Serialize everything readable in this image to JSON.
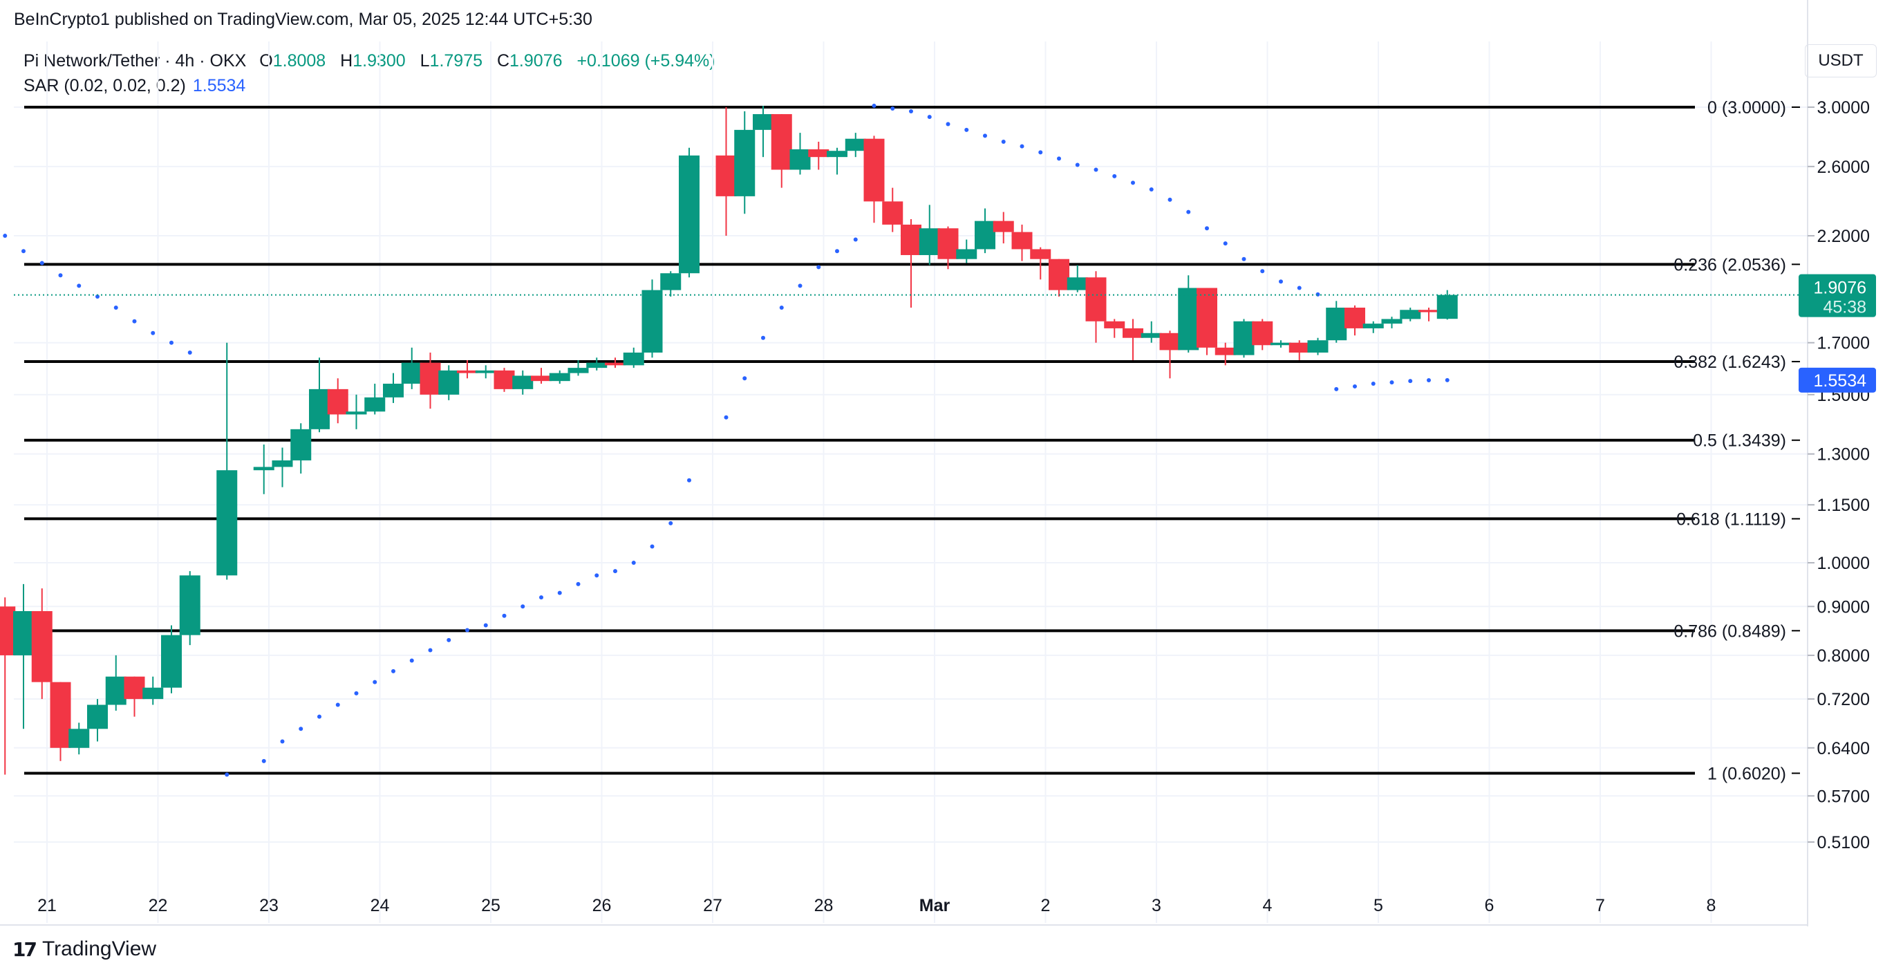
{
  "publisher": "BeInCrypto1 published on TradingView.com, Mar 05, 2025 12:44 UTC+5:30",
  "legend": {
    "symbol": "Pi Network/Tether · 4h · OKX",
    "o_label": "O",
    "o_value": "1.8008",
    "h_label": "H",
    "h_value": "1.9300",
    "l_label": "L",
    "l_value": "1.7975",
    "c_label": "C",
    "c_value": "1.9076",
    "change": "+0.1069 (+5.94%)",
    "sar_label": "SAR (0.02, 0.02, 0.2)",
    "sar_value": "1.5534"
  },
  "currency_button": "USDT",
  "footer_brand": "TradingView",
  "footer_icon": "tradingview-logo-icon",
  "colors": {
    "up": "#089981",
    "down": "#f23645",
    "sar": "#2962ff",
    "grid": "#f0f3fa",
    "fib_line": "#000000",
    "text": "#131722"
  },
  "chart_data": {
    "type": "candlestick",
    "scale": "log",
    "ylim": [
      0.465,
      3.2
    ],
    "y_ticks": [
      "3.0000",
      "2.6000",
      "2.2000",
      "1.7000",
      "1.5000",
      "1.3000",
      "1.1500",
      "1.0000",
      "0.9000",
      "0.8000",
      "0.7200",
      "0.6400",
      "0.5700",
      "0.5100"
    ],
    "x_labels": [
      "21",
      "22",
      "23",
      "24",
      "25",
      "26",
      "27",
      "28",
      "Mar",
      "2",
      "3",
      "4",
      "5",
      "6",
      "7",
      "8"
    ],
    "fib_levels": [
      {
        "label": "0 (3.0000)",
        "value": 3.0
      },
      {
        "label": "0.236 (2.0536)",
        "value": 2.0536
      },
      {
        "label": "0.382 (1.6243)",
        "value": 1.6243
      },
      {
        "label": "0.5 (1.3439)",
        "value": 1.3439
      },
      {
        "label": "0.618 (1.1119)",
        "value": 1.1119
      },
      {
        "label": "0.786 (0.8489)",
        "value": 0.8489
      },
      {
        "label": "1 (0.6020)",
        "value": 0.602
      }
    ],
    "last_price": {
      "value": 1.9076,
      "label": "1.9076",
      "countdown": "45:38"
    },
    "sar_price": {
      "value": 1.5534,
      "label": "1.5534"
    },
    "candles": [
      [
        "2025-02-20 20:00",
        0.9,
        0.92,
        0.6,
        0.8
      ],
      [
        "2025-02-21 00:00",
        0.8,
        0.95,
        0.67,
        0.89
      ],
      [
        "2025-02-21 04:00",
        0.89,
        0.94,
        0.72,
        0.75
      ],
      [
        "2025-02-21 08:00",
        0.75,
        0.75,
        0.62,
        0.64
      ],
      [
        "2025-02-21 12:00",
        0.64,
        0.68,
        0.63,
        0.67
      ],
      [
        "2025-02-21 16:00",
        0.67,
        0.72,
        0.65,
        0.71
      ],
      [
        "2025-02-21 20:00",
        0.71,
        0.8,
        0.7,
        0.76
      ],
      [
        "2025-02-22 00:00",
        0.76,
        0.76,
        0.69,
        0.72
      ],
      [
        "2025-02-22 04:00",
        0.72,
        0.76,
        0.71,
        0.74
      ],
      [
        "2025-02-22 08:00",
        0.74,
        0.86,
        0.73,
        0.84
      ],
      [
        "2025-02-22 12:00",
        0.84,
        0.98,
        0.82,
        0.97
      ],
      [
        "2025-02-22 20:00",
        0.97,
        1.7,
        0.96,
        1.25
      ],
      [
        "2025-02-23 04:00",
        1.25,
        1.33,
        1.18,
        1.26
      ],
      [
        "2025-02-23 08:00",
        1.26,
        1.32,
        1.2,
        1.28
      ],
      [
        "2025-02-23 12:00",
        1.28,
        1.4,
        1.24,
        1.38
      ],
      [
        "2025-02-23 16:00",
        1.38,
        1.64,
        1.37,
        1.52
      ],
      [
        "2025-02-23 20:00",
        1.52,
        1.56,
        1.4,
        1.43
      ],
      [
        "2025-02-24 00:00",
        1.43,
        1.5,
        1.38,
        1.44
      ],
      [
        "2025-02-24 04:00",
        1.44,
        1.54,
        1.43,
        1.49
      ],
      [
        "2025-02-24 08:00",
        1.49,
        1.58,
        1.47,
        1.54
      ],
      [
        "2025-02-24 12:00",
        1.54,
        1.68,
        1.52,
        1.62
      ],
      [
        "2025-02-24 16:00",
        1.62,
        1.66,
        1.45,
        1.5
      ],
      [
        "2025-02-24 20:00",
        1.5,
        1.61,
        1.48,
        1.59
      ],
      [
        "2025-02-25 00:00",
        1.59,
        1.63,
        1.56,
        1.58
      ],
      [
        "2025-02-25 04:00",
        1.58,
        1.61,
        1.56,
        1.59
      ],
      [
        "2025-02-25 08:00",
        1.59,
        1.6,
        1.51,
        1.52
      ],
      [
        "2025-02-25 12:00",
        1.52,
        1.59,
        1.5,
        1.57
      ],
      [
        "2025-02-25 16:00",
        1.57,
        1.6,
        1.54,
        1.55
      ],
      [
        "2025-02-25 20:00",
        1.55,
        1.59,
        1.54,
        1.58
      ],
      [
        "2025-02-26 00:00",
        1.58,
        1.63,
        1.57,
        1.6
      ],
      [
        "2025-02-26 04:00",
        1.6,
        1.64,
        1.59,
        1.62
      ],
      [
        "2025-02-26 08:00",
        1.62,
        1.64,
        1.6,
        1.61
      ],
      [
        "2025-02-26 12:00",
        1.61,
        1.68,
        1.6,
        1.66
      ],
      [
        "2025-02-26 16:00",
        1.66,
        1.98,
        1.64,
        1.93
      ],
      [
        "2025-02-26 20:00",
        1.93,
        2.02,
        1.9,
        2.01
      ],
      [
        "2025-02-27 00:00",
        2.01,
        2.72,
        1.99,
        2.67
      ],
      [
        "2025-02-27 08:00",
        2.67,
        3.0,
        2.2,
        2.42
      ],
      [
        "2025-02-27 12:00",
        2.42,
        2.97,
        2.32,
        2.84
      ],
      [
        "2025-02-27 16:00",
        2.84,
        3.01,
        2.66,
        2.95
      ],
      [
        "2025-02-27 20:00",
        2.95,
        2.95,
        2.47,
        2.58
      ],
      [
        "2025-02-28 00:00",
        2.58,
        2.82,
        2.55,
        2.71
      ],
      [
        "2025-02-28 04:00",
        2.71,
        2.76,
        2.58,
        2.66
      ],
      [
        "2025-02-28 08:00",
        2.66,
        2.72,
        2.55,
        2.7
      ],
      [
        "2025-02-28 12:00",
        2.7,
        2.82,
        2.66,
        2.78
      ],
      [
        "2025-02-28 16:00",
        2.78,
        2.8,
        2.27,
        2.39
      ],
      [
        "2025-02-28 20:00",
        2.39,
        2.47,
        2.22,
        2.26
      ],
      [
        "2025-03-01 00:00",
        2.26,
        2.29,
        1.85,
        2.1
      ],
      [
        "2025-03-01 04:00",
        2.1,
        2.37,
        2.05,
        2.24
      ],
      [
        "2025-03-01 08:00",
        2.24,
        2.25,
        2.03,
        2.08
      ],
      [
        "2025-03-01 12:00",
        2.08,
        2.18,
        2.06,
        2.13
      ],
      [
        "2025-03-01 16:00",
        2.13,
        2.35,
        2.11,
        2.28
      ],
      [
        "2025-03-01 20:00",
        2.28,
        2.33,
        2.16,
        2.22
      ],
      [
        "2025-03-02 00:00",
        2.22,
        2.26,
        2.07,
        2.13
      ],
      [
        "2025-03-02 04:00",
        2.13,
        2.14,
        1.98,
        2.08
      ],
      [
        "2025-03-02 08:00",
        2.08,
        2.08,
        1.9,
        1.93
      ],
      [
        "2025-03-02 12:00",
        1.93,
        2.05,
        1.92,
        1.99
      ],
      [
        "2025-03-02 16:00",
        1.99,
        2.02,
        1.7,
        1.79
      ],
      [
        "2025-03-02 20:00",
        1.79,
        1.8,
        1.72,
        1.76
      ],
      [
        "2025-03-03 00:00",
        1.76,
        1.8,
        1.63,
        1.72
      ],
      [
        "2025-03-03 04:00",
        1.72,
        1.79,
        1.7,
        1.74
      ],
      [
        "2025-03-03 08:00",
        1.74,
        1.75,
        1.56,
        1.67
      ],
      [
        "2025-03-03 12:00",
        1.67,
        2.0,
        1.66,
        1.94
      ],
      [
        "2025-03-03 16:00",
        1.94,
        1.94,
        1.65,
        1.68
      ],
      [
        "2025-03-03 20:00",
        1.68,
        1.7,
        1.61,
        1.65
      ],
      [
        "2025-03-04 00:00",
        1.65,
        1.8,
        1.64,
        1.79
      ],
      [
        "2025-03-04 04:00",
        1.79,
        1.8,
        1.67,
        1.69
      ],
      [
        "2025-03-04 08:00",
        1.69,
        1.71,
        1.68,
        1.7
      ],
      [
        "2025-03-04 12:00",
        1.7,
        1.71,
        1.63,
        1.66
      ],
      [
        "2025-03-04 16:00",
        1.66,
        1.72,
        1.65,
        1.71
      ],
      [
        "2025-03-04 20:00",
        1.71,
        1.88,
        1.7,
        1.85
      ],
      [
        "2025-03-05 00:00",
        1.85,
        1.86,
        1.73,
        1.76
      ],
      [
        "2025-03-05 04:00",
        1.76,
        1.79,
        1.74,
        1.78
      ],
      [
        "2025-03-05 08:00",
        1.78,
        1.81,
        1.76,
        1.8
      ],
      [
        "2025-03-05 12:00",
        1.8,
        1.85,
        1.79,
        1.84
      ],
      [
        "2025-03-05 16:00",
        1.84,
        1.85,
        1.79,
        1.83
      ],
      [
        "2025-03-05 20:00",
        1.8008,
        1.93,
        1.7975,
        1.9076
      ]
    ],
    "sar": [
      [
        "2025-02-20 20:00",
        2.2
      ],
      [
        "2025-02-21 00:00",
        2.12
      ],
      [
        "2025-02-21 04:00",
        2.06
      ],
      [
        "2025-02-21 08:00",
        2.0
      ],
      [
        "2025-02-21 12:00",
        1.95
      ],
      [
        "2025-02-21 16:00",
        1.9
      ],
      [
        "2025-02-21 20:00",
        1.85
      ],
      [
        "2025-02-22 00:00",
        1.79
      ],
      [
        "2025-02-22 04:00",
        1.74
      ],
      [
        "2025-02-22 08:00",
        1.7
      ],
      [
        "2025-02-22 12:00",
        1.66
      ],
      [
        "2025-02-22 20:00",
        0.6
      ],
      [
        "2025-02-23 04:00",
        0.62
      ],
      [
        "2025-02-23 08:00",
        0.65
      ],
      [
        "2025-02-23 12:00",
        0.67
      ],
      [
        "2025-02-23 16:00",
        0.69
      ],
      [
        "2025-02-23 20:00",
        0.71
      ],
      [
        "2025-02-24 00:00",
        0.73
      ],
      [
        "2025-02-24 04:00",
        0.75
      ],
      [
        "2025-02-24 08:00",
        0.77
      ],
      [
        "2025-02-24 12:00",
        0.79
      ],
      [
        "2025-02-24 16:00",
        0.81
      ],
      [
        "2025-02-24 20:00",
        0.83
      ],
      [
        "2025-02-25 00:00",
        0.85
      ],
      [
        "2025-02-25 04:00",
        0.86
      ],
      [
        "2025-02-25 08:00",
        0.88
      ],
      [
        "2025-02-25 12:00",
        0.9
      ],
      [
        "2025-02-25 16:00",
        0.92
      ],
      [
        "2025-02-25 20:00",
        0.93
      ],
      [
        "2025-02-26 00:00",
        0.95
      ],
      [
        "2025-02-26 04:00",
        0.97
      ],
      [
        "2025-02-26 08:00",
        0.98
      ],
      [
        "2025-02-26 12:00",
        1.0
      ],
      [
        "2025-02-26 16:00",
        1.04
      ],
      [
        "2025-02-26 20:00",
        1.1
      ],
      [
        "2025-02-27 00:00",
        1.22
      ],
      [
        "2025-02-27 08:00",
        1.42
      ],
      [
        "2025-02-27 12:00",
        1.56
      ],
      [
        "2025-02-27 16:00",
        1.72
      ],
      [
        "2025-02-27 20:00",
        1.85
      ],
      [
        "2025-02-28 00:00",
        1.95
      ],
      [
        "2025-02-28 04:00",
        2.04
      ],
      [
        "2025-02-28 08:00",
        2.12
      ],
      [
        "2025-02-28 12:00",
        2.18
      ],
      [
        "2025-02-28 16:00",
        3.01
      ],
      [
        "2025-02-28 20:00",
        2.99
      ],
      [
        "2025-03-01 00:00",
        2.97
      ],
      [
        "2025-03-01 04:00",
        2.93
      ],
      [
        "2025-03-01 08:00",
        2.88
      ],
      [
        "2025-03-01 12:00",
        2.84
      ],
      [
        "2025-03-01 16:00",
        2.8
      ],
      [
        "2025-03-01 20:00",
        2.76
      ],
      [
        "2025-03-02 00:00",
        2.73
      ],
      [
        "2025-03-02 04:00",
        2.69
      ],
      [
        "2025-03-02 08:00",
        2.65
      ],
      [
        "2025-03-02 12:00",
        2.61
      ],
      [
        "2025-03-02 16:00",
        2.58
      ],
      [
        "2025-03-02 20:00",
        2.54
      ],
      [
        "2025-03-03 00:00",
        2.5
      ],
      [
        "2025-03-03 04:00",
        2.46
      ],
      [
        "2025-03-03 08:00",
        2.4
      ],
      [
        "2025-03-03 12:00",
        2.33
      ],
      [
        "2025-03-03 16:00",
        2.24
      ],
      [
        "2025-03-03 20:00",
        2.16
      ],
      [
        "2025-03-04 00:00",
        2.08
      ],
      [
        "2025-03-04 04:00",
        2.02
      ],
      [
        "2025-03-04 08:00",
        1.97
      ],
      [
        "2025-03-04 12:00",
        1.94
      ],
      [
        "2025-03-04 16:00",
        1.91
      ],
      [
        "2025-03-04 20:00",
        1.52
      ],
      [
        "2025-03-05 00:00",
        1.53
      ],
      [
        "2025-03-05 04:00",
        1.54
      ],
      [
        "2025-03-05 08:00",
        1.545
      ],
      [
        "2025-03-05 12:00",
        1.55
      ],
      [
        "2025-03-05 16:00",
        1.553
      ],
      [
        "2025-03-05 20:00",
        1.5534
      ]
    ]
  }
}
